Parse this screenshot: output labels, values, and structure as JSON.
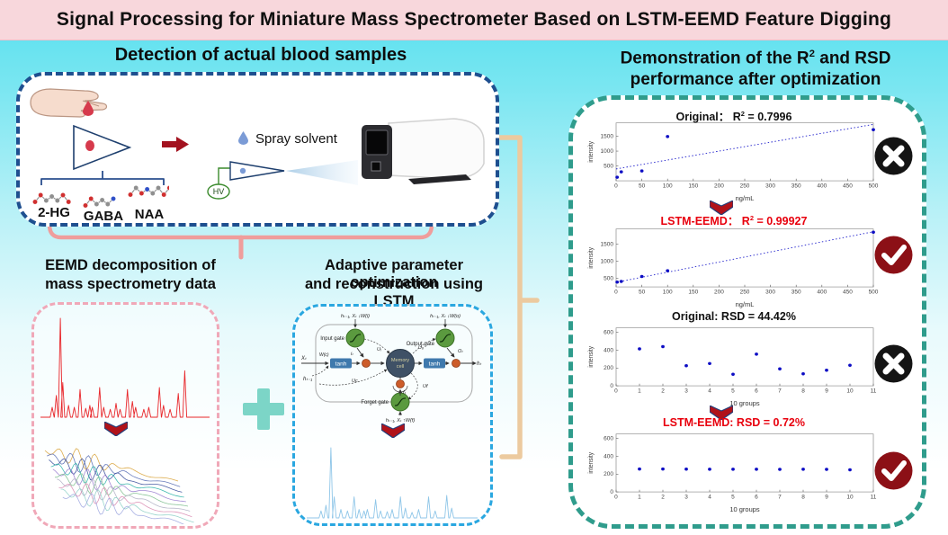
{
  "banner": {
    "title": "Signal Processing for Miniature Mass Spectrometer Based on LSTM-EEMD Feature Digging"
  },
  "sections": {
    "blood": {
      "title": "Detection of actual blood samples",
      "spray_label": "Spray solvent",
      "hv_label": "HV",
      "molecules": [
        {
          "label": "2-HG",
          "atoms": [
            "r",
            "r",
            "g",
            "g",
            "g",
            "r",
            "r"
          ]
        },
        {
          "label": "GABA",
          "atoms": [
            "r",
            "r",
            "g",
            "g",
            "g",
            "b"
          ]
        },
        {
          "label": "NAA",
          "atoms": [
            "r",
            "g",
            "r",
            "b",
            "g",
            "g",
            "r",
            "r"
          ]
        }
      ]
    },
    "eemd": {
      "title_line1": "EEMD decomposition of",
      "title_line2": "mass spectrometry data"
    },
    "lstm": {
      "title_line1": "Adaptive parameter optimization",
      "title_line2": "and reconstruction using LSTM",
      "diagram": {
        "input_gate": "Input gate",
        "output_gate": "Output gate",
        "forget_gate": "Forget gate",
        "memory_cell_line1": "Memory",
        "memory_cell_line2": "cell",
        "tanh": "tanh",
        "feed_top_left": "hₜ₋₁, Xₜ ↓W(i)",
        "feed_top_right": "hₜ₋₁, Xₜ ↓W(o)",
        "feed_bottom": "hₜ₋₁, Xₜ ↑W(f)",
        "x_in": "Xₜ",
        "h_out": "hₜ",
        "h_prev": "hₜ₋₁",
        "w_c": "W(c)",
        "u_i": "Uᵢ",
        "u_o": "Uₒ",
        "u_c": "Uc",
        "u_f": "Uf",
        "i_t": "iₜ",
        "o_t": "Oₜ",
        "f_t": "fₜ"
      }
    },
    "demo": {
      "title_line1_prefix": "Demonstration of the R",
      "title_line1_sup": "2",
      "title_line1_suffix": " and RSD",
      "title_line2": "performance after optimization"
    }
  },
  "colors": {
    "banner_bg": "#f8d7dc",
    "blood_border": "#1e4f8f",
    "demo_border": "#2f9c8c",
    "eemd_border": "#f0a8b8",
    "lstm_border": "#2aa7e0",
    "brace_pink": "#ef9d9c",
    "bracket_tan": "#ecca9f",
    "plus_teal": "#7cd5c7",
    "fail_bg": "#141414",
    "pass_bg": "#8c1016",
    "point_blue": "#0d0dc4",
    "spectrum_red": "#e8262a",
    "spectrum_blue": "#8fc6e8",
    "arrow_red": "#a3121f"
  },
  "chart_data": [
    {
      "id": "r2-original",
      "type": "scatter",
      "title_prefix": "Original： R",
      "title_sup": "2",
      "title_suffix": " = 0.7996",
      "title_color": "#111111",
      "xlabel": "ng/mL",
      "ylabel": "intensity",
      "xlim": [
        0,
        500
      ],
      "ylim": [
        0,
        1950
      ],
      "xticks": [
        0,
        50,
        100,
        150,
        200,
        250,
        300,
        350,
        400,
        450,
        500
      ],
      "yticks": [
        500,
        1000,
        1500
      ],
      "points": [
        [
          2,
          120
        ],
        [
          10,
          300
        ],
        [
          50,
          330
        ],
        [
          100,
          1490
        ],
        [
          500,
          1720
        ]
      ],
      "fit_line": {
        "x": [
          0,
          500
        ],
        "y": [
          400,
          1900
        ],
        "style": "dotted"
      },
      "verdict": "fail"
    },
    {
      "id": "r2-lstm-eemd",
      "type": "scatter",
      "title_prefix": "LSTM-EEMD： R",
      "title_sup": "2",
      "title_suffix": " = 0.99927",
      "title_color": "#e8000d",
      "xlabel": "ng/mL",
      "ylabel": "intensity",
      "xlim": [
        0,
        500
      ],
      "ylim": [
        250,
        1950
      ],
      "xticks": [
        0,
        50,
        100,
        150,
        200,
        250,
        300,
        350,
        400,
        450,
        500
      ],
      "yticks": [
        500,
        1000,
        1500
      ],
      "points": [
        [
          2,
          390
        ],
        [
          10,
          410
        ],
        [
          50,
          555
        ],
        [
          100,
          725
        ],
        [
          500,
          1855
        ]
      ],
      "fit_line": {
        "x": [
          0,
          500
        ],
        "y": [
          385,
          1870
        ],
        "style": "dotted"
      },
      "verdict": "pass"
    },
    {
      "id": "rsd-original",
      "type": "scatter",
      "title_prefix": "Original:  RSD = 44.42%",
      "title_color": "#111111",
      "xlabel": "10 groups",
      "ylabel": "intensity",
      "xlim": [
        0,
        11
      ],
      "ylim": [
        0,
        650
      ],
      "xticks": [
        0,
        1,
        2,
        3,
        4,
        5,
        6,
        7,
        8,
        9,
        10,
        11
      ],
      "yticks": [
        0,
        200,
        400,
        600
      ],
      "points": [
        [
          1,
          415
        ],
        [
          2,
          440
        ],
        [
          3,
          225
        ],
        [
          4,
          250
        ],
        [
          5,
          130
        ],
        [
          6,
          355
        ],
        [
          7,
          190
        ],
        [
          8,
          135
        ],
        [
          9,
          175
        ],
        [
          10,
          230
        ]
      ],
      "verdict": "fail"
    },
    {
      "id": "rsd-lstm-eemd",
      "type": "scatter",
      "title_prefix": "LSTM-EEMD:  RSD = 0.72%",
      "title_color": "#e8000d",
      "xlabel": "10 groups",
      "ylabel": "intensity",
      "xlim": [
        0,
        11
      ],
      "ylim": [
        0,
        650
      ],
      "xticks": [
        0,
        1,
        2,
        3,
        4,
        5,
        6,
        7,
        8,
        9,
        10,
        11
      ],
      "yticks": [
        0,
        200,
        400,
        600
      ],
      "points": [
        [
          1,
          257
        ],
        [
          2,
          257
        ],
        [
          3,
          256
        ],
        [
          4,
          255
        ],
        [
          5,
          254
        ],
        [
          6,
          255
        ],
        [
          7,
          253
        ],
        [
          8,
          255
        ],
        [
          9,
          253
        ],
        [
          10,
          248
        ]
      ],
      "verdict": "pass"
    },
    {
      "id": "raw-mass-spectrum",
      "type": "peaks",
      "color": "#e8262a",
      "peaks": [
        [
          0.055,
          0.1
        ],
        [
          0.08,
          0.22
        ],
        [
          0.105,
          1.0
        ],
        [
          0.12,
          0.35
        ],
        [
          0.155,
          0.12
        ],
        [
          0.19,
          0.1
        ],
        [
          0.225,
          0.28
        ],
        [
          0.26,
          0.09
        ],
        [
          0.285,
          0.12
        ],
        [
          0.3,
          0.1
        ],
        [
          0.345,
          0.3
        ],
        [
          0.37,
          0.1
        ],
        [
          0.41,
          0.08
        ],
        [
          0.445,
          0.14
        ],
        [
          0.47,
          0.08
        ],
        [
          0.515,
          0.28
        ],
        [
          0.545,
          0.16
        ],
        [
          0.565,
          0.1
        ],
        [
          0.615,
          0.08
        ],
        [
          0.645,
          0.1
        ],
        [
          0.71,
          0.3
        ],
        [
          0.735,
          0.12
        ],
        [
          0.775,
          0.08
        ],
        [
          0.825,
          0.24
        ],
        [
          0.865,
          0.47
        ]
      ]
    },
    {
      "id": "reconstructed-spectrum",
      "type": "peaks",
      "color": "#8fc6e8",
      "peaks": [
        [
          0.07,
          0.1
        ],
        [
          0.1,
          0.18
        ],
        [
          0.13,
          1.0
        ],
        [
          0.15,
          0.3
        ],
        [
          0.19,
          0.12
        ],
        [
          0.23,
          0.1
        ],
        [
          0.27,
          0.3
        ],
        [
          0.3,
          0.12
        ],
        [
          0.33,
          0.1
        ],
        [
          0.35,
          0.12
        ],
        [
          0.4,
          0.26
        ],
        [
          0.43,
          0.1
        ],
        [
          0.47,
          0.09
        ],
        [
          0.5,
          0.12
        ],
        [
          0.55,
          0.3
        ],
        [
          0.58,
          0.14
        ],
        [
          0.62,
          0.08
        ],
        [
          0.66,
          0.12
        ],
        [
          0.72,
          0.3
        ],
        [
          0.76,
          0.1
        ],
        [
          0.83,
          0.32
        ],
        [
          0.86,
          0.14
        ]
      ]
    },
    {
      "id": "imf-decomposition",
      "type": "imf-cascade",
      "colors": [
        "#d9a43c",
        "#5a6fb5",
        "#384e9b",
        "#2fb3a8",
        "#9b7fd0",
        "#7fbf8f",
        "#b0b0c4",
        "#d98cb3",
        "#8fd0c8",
        "#a0a8e0"
      ]
    }
  ]
}
